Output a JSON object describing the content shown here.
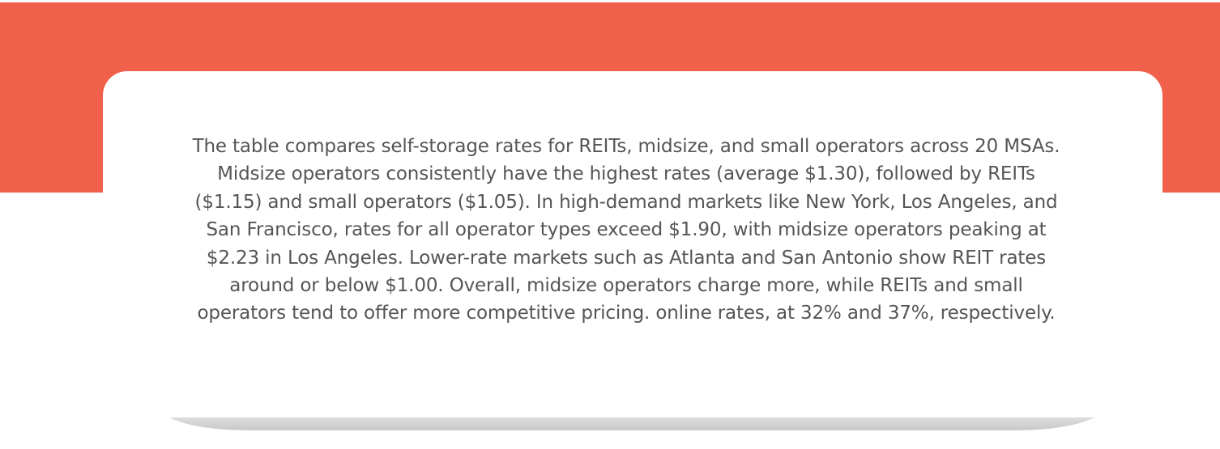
{
  "summary": {
    "text": "The table compares self-storage rates for REITs, midsize, and small operators across 20 MSAs. Midsize operators consistently have the highest rates (average $1.30), followed by REITs ($1.15) and small operators ($1.05). In high-demand markets like New York, Los Angeles, and San Francisco, rates for all operator types exceed $1.90, with midsize operators peaking at $2.23 in Los Angeles. Lower-rate markets such as Atlanta and San Antonio show REIT rates around or below $1.00. Overall, midsize operators charge more, while REITs and small operators tend to offer more competitive pricing. online rates, at 32% and 37%, respectively."
  },
  "colors": {
    "banner": "#f0604a",
    "text": "#555555",
    "card": "#ffffff"
  }
}
